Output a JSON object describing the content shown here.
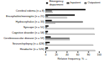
{
  "chart_data": {
    "type": "bar",
    "orientation": "horizontal",
    "categories": [
      "Cerebral edema (n = 8)",
      "Encephalitis/meningitis (n = 21)",
      "Hydrocephalus (n = 33)",
      "Syncope (n = 51)",
      "Cognitive disorder (n = 58)",
      "Cerebrovascular disease (n = 59)",
      "Seizure/epilepsy (n = 428)",
      "Headache (n = 526)"
    ],
    "series": [
      {
        "name": "Emergency\ndepartment",
        "color": "#1a1a1a",
        "values": [
          75,
          55,
          12,
          6,
          5,
          10,
          8,
          5
        ]
      },
      {
        "name": "Inpatient",
        "color": "#888888",
        "values": [
          12,
          5,
          70,
          3,
          3,
          45,
          3,
          2
        ]
      },
      {
        "name": "Outpatient",
        "color": "#d8d8d8",
        "values": [
          13,
          40,
          18,
          91,
          92,
          45,
          89,
          93
        ]
      }
    ],
    "xlabel": "Relative frequency, %",
    "xlim": [
      0,
      100
    ],
    "xticks": [
      0,
      20,
      40,
      60,
      80,
      100
    ],
    "legend": "upper right"
  }
}
